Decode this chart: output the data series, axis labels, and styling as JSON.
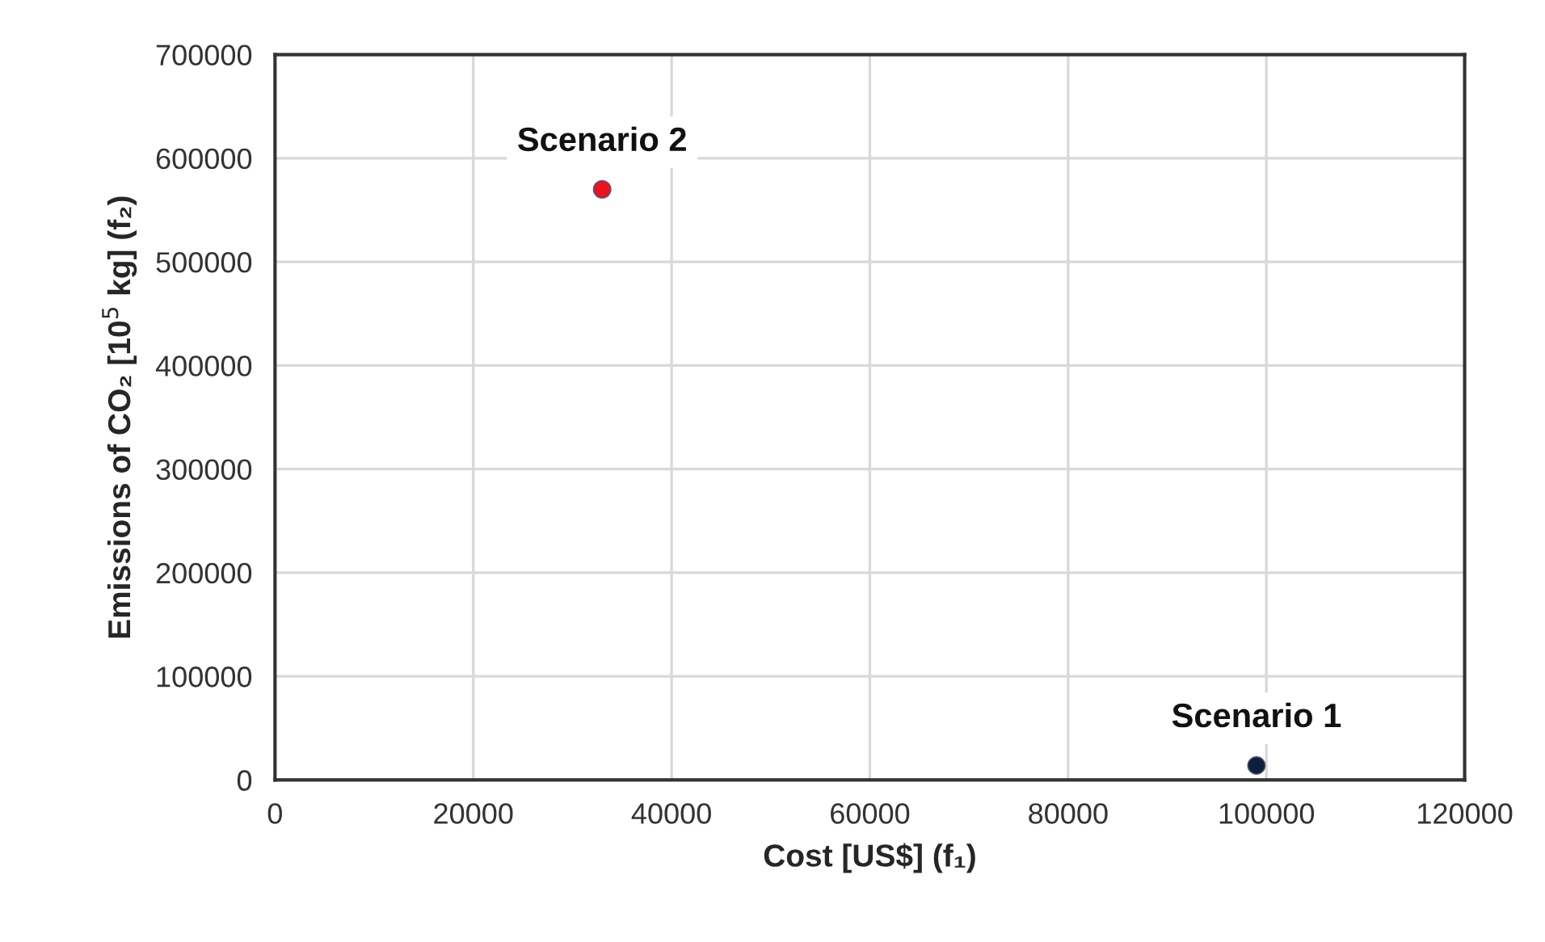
{
  "chart_data": {
    "type": "scatter",
    "xlabel": "Cost [US$] (f₁)",
    "ylabel": "Emissions of CO₂ [10$^{5}$ kg] (f₂)",
    "series": [
      {
        "name": "Scenario 1",
        "color": "#0d1f3c",
        "x": [
          99000
        ],
        "values": [
          14000
        ]
      },
      {
        "name": "Scenario 2",
        "color": "#e8141e",
        "x": [
          33000
        ],
        "values": [
          570000
        ]
      }
    ],
    "xlim": [
      0,
      120000
    ],
    "xticks": [
      0,
      20000,
      40000,
      60000,
      80000,
      100000,
      120000
    ],
    "ylim": [
      0,
      700000
    ],
    "yticks": [
      0,
      100000,
      200000,
      300000,
      400000,
      500000,
      600000,
      700000
    ],
    "grid": true,
    "legend": false,
    "marker": "circle"
  }
}
